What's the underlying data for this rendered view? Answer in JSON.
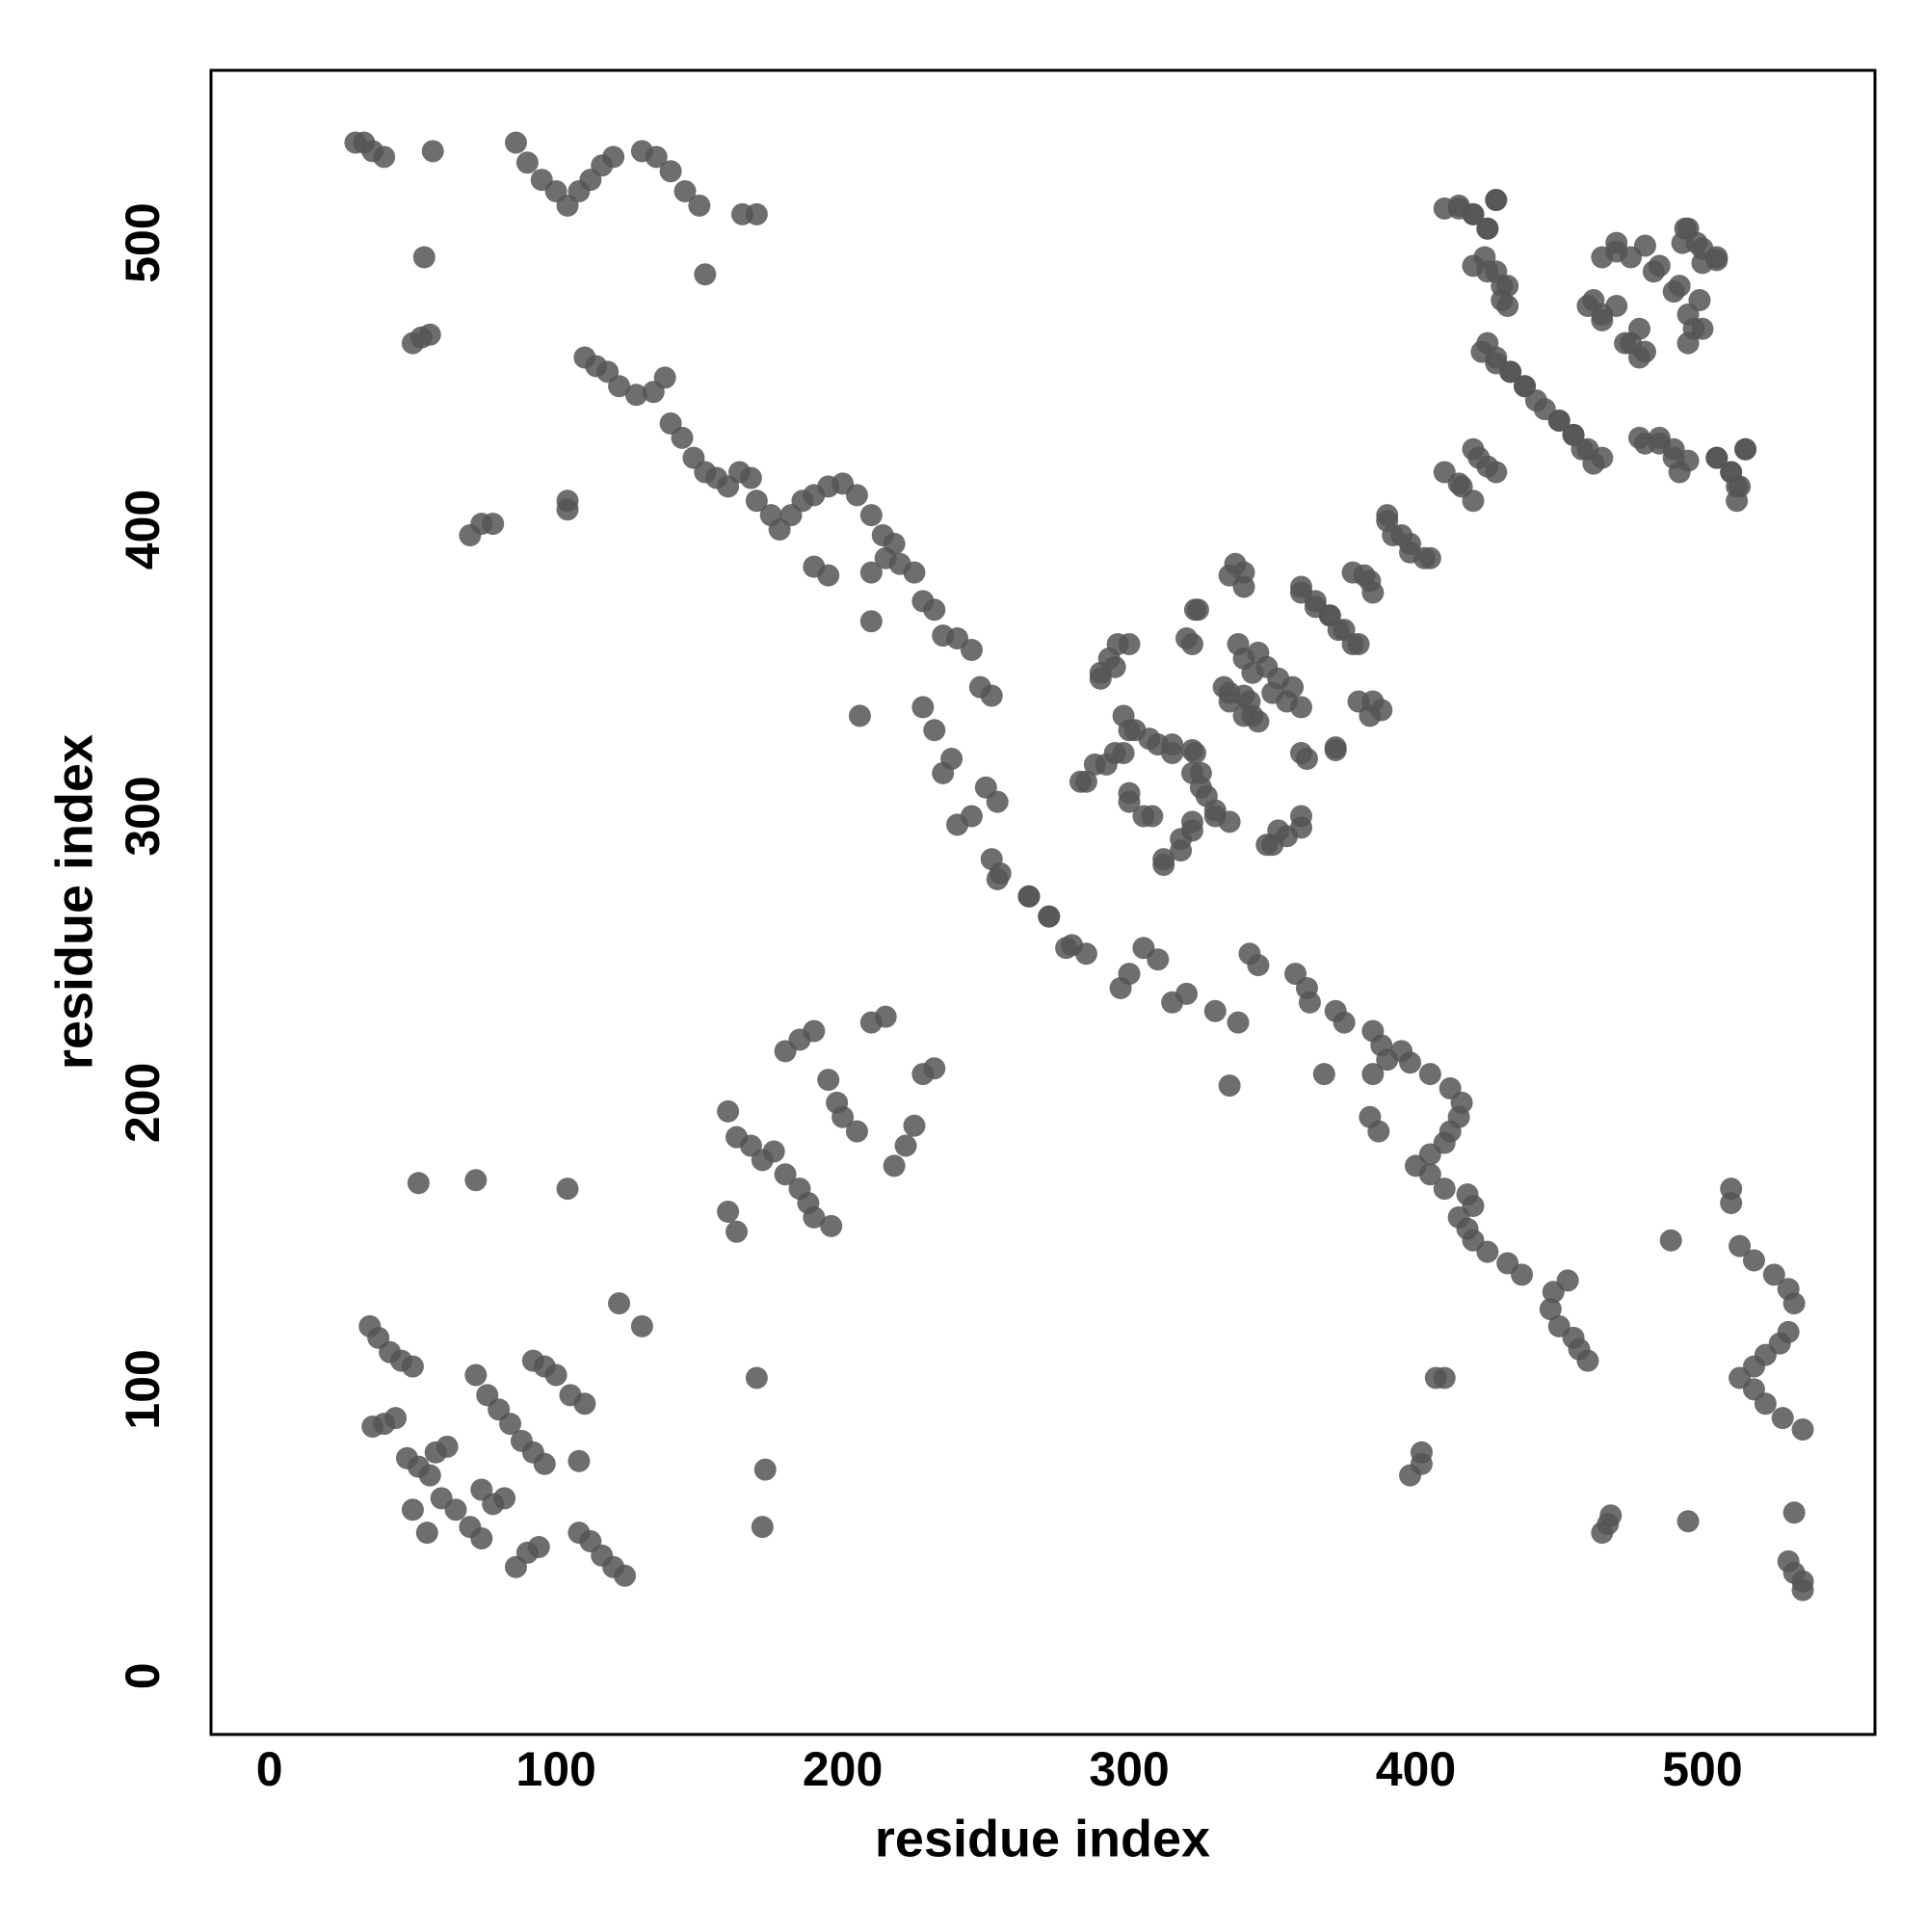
{
  "chart_data": {
    "type": "scatter",
    "xlabel": "residue index",
    "ylabel": "residue index",
    "xlim": [
      -20.4,
      560.2
    ],
    "ylim": [
      -20.4,
      560.2
    ],
    "xticks": [
      0,
      100,
      200,
      300,
      400,
      500
    ],
    "yticks": [
      0,
      100,
      200,
      300,
      400,
      500
    ],
    "color": "#555555",
    "x": [
      30,
      33,
      36,
      40,
      57,
      86,
      90,
      95,
      100,
      104,
      108,
      112,
      116,
      120,
      130,
      135,
      140,
      145,
      150,
      152,
      165,
      170,
      54,
      50,
      53,
      56,
      110,
      114,
      118,
      122,
      128,
      134,
      138,
      140,
      144,
      148,
      152,
      156,
      160,
      164,
      168,
      170,
      175,
      178,
      182,
      186,
      190,
      195,
      200,
      205,
      210,
      214,
      218,
      210,
      215,
      220,
      225,
      228,
      232,
      235,
      240,
      245,
      248,
      252,
      210,
      206,
      228,
      232,
      238,
      235,
      250,
      254,
      245,
      240,
      252,
      254,
      104,
      104,
      70,
      74,
      78,
      190,
      195,
      265,
      272,
      280,
      52,
      72,
      104,
      122,
      290,
      295,
      300,
      285,
      292,
      298,
      302,
      300,
      305,
      310,
      315,
      322,
      325,
      327,
      330,
      322,
      318,
      312,
      335,
      320,
      323,
      335,
      340,
      335,
      340,
      345,
      348,
      350,
      355,
      360,
      345,
      340,
      350,
      355,
      360,
      360,
      372,
      360,
      365,
      370,
      375,
      380,
      385,
      388,
      382,
      385,
      390,
      395,
      398,
      403,
      410,
      415,
      420,
      425,
      410,
      415,
      420,
      425,
      428,
      420,
      425,
      430,
      432,
      423,
      428,
      433,
      438,
      445,
      450,
      455,
      460,
      465,
      470,
      475,
      480,
      485,
      490,
      495,
      498,
      500,
      505,
      460,
      465,
      470,
      475,
      480,
      495,
      500,
      480,
      485,
      490,
      495,
      505,
      510,
      512,
      515,
      535,
      535,
      532,
      530,
      532,
      535,
      528,
      522,
      518,
      513,
      518,
      522,
      527,
      530,
      532,
      530,
      525,
      518,
      513,
      489,
      510,
      510,
      495,
      465,
      467,
      468,
      460,
      457,
      455,
      450,
      447,
      448,
      453,
      437,
      432,
      425,
      420,
      418,
      415,
      420,
      418,
      410,
      405,
      400,
      405,
      410,
      412,
      415,
      416,
      412,
      405,
      398,
      395,
      385,
      390,
      388,
      385,
      375,
      372,
      363,
      362,
      358,
      345,
      342,
      368,
      335,
      338,
      330,
      320,
      315,
      310,
      305,
      300,
      297,
      285,
      278,
      410,
      407,
      398,
      402,
      402,
      387,
      384,
      272,
      265,
      255,
      172,
      173,
      170,
      130,
      348,
      352,
      360,
      312,
      318,
      322,
      330,
      308,
      300,
      325,
      322,
      323,
      315,
      307,
      300,
      295,
      288,
      283,
      298,
      362,
      372,
      343,
      342,
      384,
      380,
      357,
      352,
      343,
      340,
      338,
      333,
      335,
      290,
      293,
      296,
      322,
      324,
      378,
      373,
      370,
      365,
      360,
      340,
      337,
      384,
      378,
      405,
      398,
      392,
      390,
      420,
      416,
      428,
      422,
      512,
      513,
      510,
      505,
      515,
      492,
      490,
      485,
      478,
      462,
      458,
      455,
      450,
      442,
      438,
      433,
      428,
      425,
      497,
      495,
      499,
      492,
      483,
      505,
      500,
      493,
      494,
      478,
      473,
      478,
      465,
      462,
      465,
      470,
      430,
      432,
      428,
      424,
      425,
      420,
      415,
      428,
      35,
      38,
      42,
      46,
      50,
      36,
      40,
      44,
      48,
      52,
      56,
      58,
      62,
      50,
      55,
      60,
      65,
      70,
      74,
      72,
      76,
      80,
      84,
      88,
      92,
      96,
      92,
      96,
      100,
      105,
      110,
      86,
      90,
      94,
      108,
      112,
      116,
      120,
      124,
      108,
      74,
      78,
      82,
      160,
      163,
      168,
      172,
      176,
      180,
      185,
      188,
      190,
      196,
      180,
      185,
      190,
      195,
      198,
      200,
      205,
      210,
      215,
      218,
      222,
      225,
      228,
      232,
      160,
      163
    ],
    "values": [
      535,
      535,
      532,
      530,
      532,
      535,
      528,
      522,
      518,
      513,
      518,
      522,
      527,
      530,
      532,
      530,
      525,
      518,
      513,
      489,
      510,
      510,
      495,
      465,
      467,
      468,
      460,
      457,
      455,
      450,
      447,
      448,
      453,
      437,
      432,
      425,
      420,
      418,
      415,
      420,
      418,
      410,
      405,
      400,
      405,
      410,
      412,
      415,
      416,
      412,
      405,
      398,
      395,
      385,
      390,
      388,
      385,
      375,
      372,
      363,
      362,
      358,
      345,
      342,
      368,
      335,
      338,
      330,
      320,
      315,
      310,
      305,
      300,
      297,
      285,
      278,
      410,
      407,
      398,
      402,
      402,
      387,
      384,
      272,
      265,
      255,
      172,
      173,
      170,
      130,
      348,
      352,
      360,
      312,
      318,
      322,
      330,
      308,
      300,
      325,
      322,
      323,
      315,
      307,
      300,
      295,
      288,
      283,
      298,
      362,
      372,
      343,
      342,
      384,
      380,
      357,
      352,
      343,
      340,
      338,
      333,
      335,
      290,
      293,
      296,
      322,
      324,
      378,
      373,
      370,
      365,
      360,
      340,
      337,
      384,
      378,
      405,
      398,
      392,
      390,
      420,
      416,
      428,
      422,
      512,
      513,
      510,
      505,
      515,
      492,
      490,
      485,
      478,
      462,
      458,
      455,
      450,
      442,
      438,
      433,
      428,
      425,
      497,
      495,
      499,
      492,
      483,
      505,
      500,
      493,
      494,
      478,
      473,
      478,
      465,
      462,
      465,
      470,
      430,
      432,
      428,
      424,
      425,
      420,
      415,
      428,
      30,
      33,
      36,
      40,
      57,
      86,
      90,
      95,
      100,
      104,
      108,
      112,
      116,
      120,
      130,
      135,
      140,
      145,
      150,
      152,
      165,
      170,
      54,
      50,
      53,
      56,
      110,
      114,
      118,
      122,
      128,
      134,
      138,
      140,
      144,
      148,
      152,
      156,
      160,
      164,
      168,
      170,
      175,
      178,
      182,
      186,
      190,
      195,
      200,
      205,
      210,
      214,
      218,
      210,
      215,
      220,
      225,
      228,
      232,
      235,
      240,
      245,
      248,
      252,
      210,
      206,
      228,
      232,
      238,
      235,
      250,
      254,
      245,
      240,
      252,
      254,
      104,
      104,
      70,
      74,
      78,
      190,
      195,
      265,
      272,
      280,
      52,
      72,
      104,
      122,
      290,
      295,
      300,
      285,
      292,
      298,
      302,
      300,
      305,
      310,
      315,
      322,
      325,
      327,
      330,
      322,
      318,
      312,
      335,
      320,
      323,
      335,
      340,
      335,
      340,
      345,
      348,
      350,
      355,
      360,
      345,
      340,
      350,
      355,
      360,
      360,
      372,
      360,
      365,
      370,
      375,
      380,
      385,
      388,
      382,
      385,
      390,
      395,
      398,
      403,
      410,
      415,
      420,
      425,
      410,
      415,
      420,
      425,
      428,
      420,
      425,
      430,
      432,
      423,
      428,
      433,
      438,
      445,
      450,
      455,
      460,
      465,
      470,
      475,
      480,
      485,
      490,
      495,
      498,
      500,
      505,
      460,
      465,
      470,
      475,
      480,
      495,
      500,
      480,
      485,
      490,
      495,
      505,
      510,
      512,
      515,
      122,
      118,
      113,
      110,
      108,
      87,
      88,
      90,
      76,
      73,
      70,
      78,
      80,
      58,
      50,
      62,
      58,
      52,
      48,
      105,
      98,
      93,
      88,
      82,
      78,
      74,
      110,
      108,
      105,
      98,
      95,
      38,
      43,
      45,
      50,
      47,
      42,
      38,
      35,
      75,
      65,
      60,
      62,
      197,
      188,
      185,
      180,
      183,
      175,
      170,
      165,
      160,
      157,
      218,
      222,
      225,
      208,
      200,
      195,
      190,
      228,
      230,
      178,
      185,
      192,
      210,
      212,
      162,
      155
    ]
  }
}
